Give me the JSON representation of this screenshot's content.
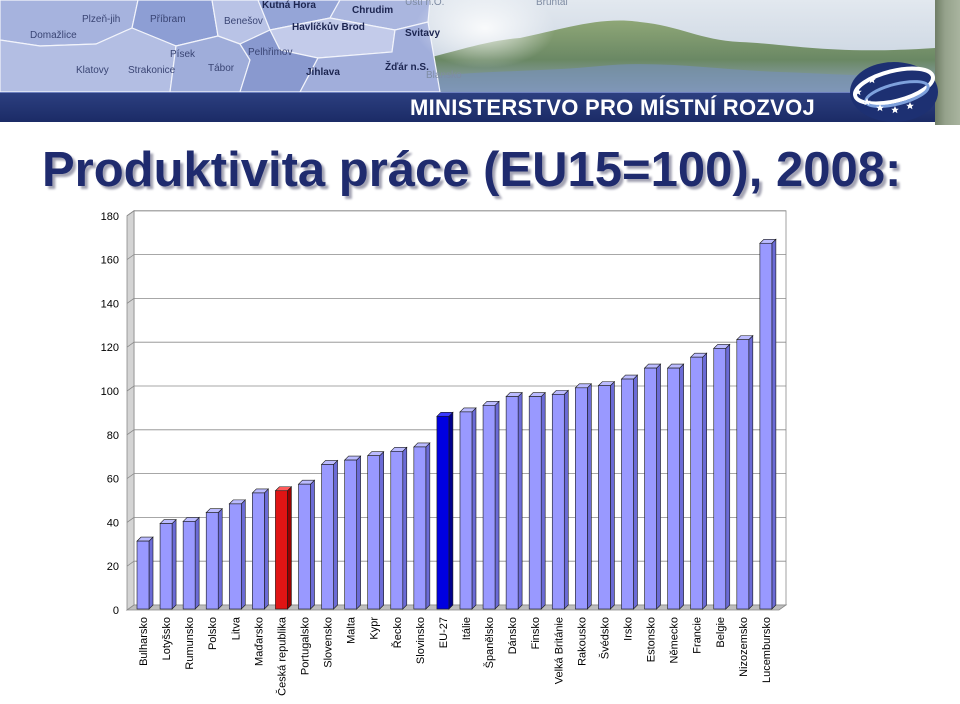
{
  "banner": {
    "ministry_name": "MINISTERSTVO PRO MÍSTNÍ ROZVOJ",
    "map_labels": [
      "Kutná Hora",
      "Chrudim",
      "Plzeň-jih",
      "Příbram",
      "Benešov",
      "Havlíčkův Brod",
      "Domažlice",
      "Svitavy",
      "Písek",
      "Pelhřimov",
      "Klatovy",
      "Strakonice",
      "Tábor",
      "Jihlava",
      "Žďár n.S.",
      "Blansko",
      "Ústí n.O.",
      "Bruntál"
    ],
    "logo_icon": "ministry-logo-stars-icon",
    "strip_color": "#1e2f6d"
  },
  "slide": {
    "title_color": "#1f2b6e"
  },
  "chart_data": {
    "type": "bar",
    "style": "3d-column",
    "title": "Produktivita práce (EU15=100), 2008:",
    "categories": [
      "Bulharsko",
      "Lotyšsko",
      "Rumunsko",
      "Polsko",
      "Litva",
      "Maďarsko",
      "Česká republika",
      "Portugalsko",
      "Slovensko",
      "Malta",
      "Kypr",
      "Řecko",
      "Slovinsko",
      "EU-27",
      "Itálie",
      "Španělsko",
      "Dánsko",
      "Finsko",
      "Velká Británie",
      "Rakousko",
      "Švédsko",
      "Irsko",
      "Estonsko",
      "Německo",
      "Francie",
      "Belgie",
      "Nizozemsko",
      "Lucembursko"
    ],
    "values": [
      31,
      39,
      40,
      44,
      48,
      53,
      54,
      57,
      66,
      68,
      70,
      72,
      74,
      88,
      90,
      93,
      97,
      97,
      98,
      101,
      102,
      105,
      110,
      110,
      115,
      119,
      123,
      167
    ],
    "ylim": [
      0,
      180
    ],
    "yticks": [
      0,
      20,
      40,
      60,
      80,
      100,
      120,
      140,
      160,
      180
    ],
    "grid": true,
    "legend": "none",
    "colors": {
      "bar": "#9999ff",
      "bar_top": "#bbbbff",
      "bar_side": "#6b6bd6",
      "highlight": [
        {
          "category": "Česká republika",
          "color": "#e01414",
          "top": "#ff5a5a",
          "side": "#9a0000"
        },
        {
          "category": "EU-27",
          "color": "#0000e0",
          "top": "#3a3aff",
          "side": "#00008c"
        }
      ]
    }
  }
}
